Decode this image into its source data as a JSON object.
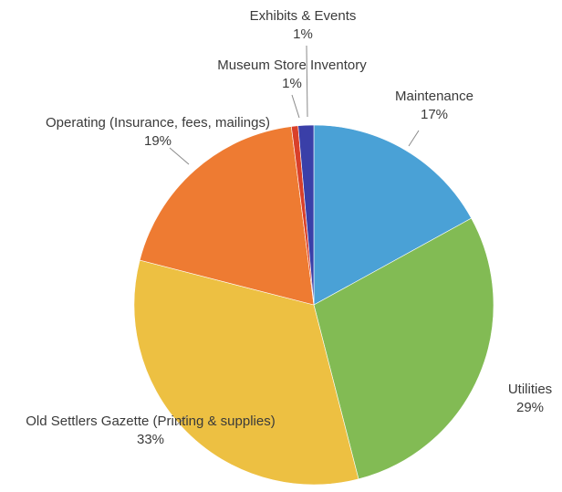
{
  "chart_data": {
    "type": "pie",
    "title": "",
    "slices": [
      {
        "label": "Maintenance",
        "value": 17,
        "value_label": "17%",
        "color": "#4aa1d6"
      },
      {
        "label": "Utilities",
        "value": 29,
        "value_label": "29%",
        "color": "#82bb54"
      },
      {
        "label": "Old Settlers Gazette (Printing & supplies)",
        "value": 33,
        "value_label": "33%",
        "color": "#edc042"
      },
      {
        "label": "Operating (Insurance, fees, mailings)",
        "value": 19,
        "value_label": "19%",
        "color": "#ee7b32"
      },
      {
        "label": "Museum Store Inventory",
        "value": 0.6,
        "value_label": "1%",
        "color": "#d9402a"
      },
      {
        "label": "Exhibits & Events",
        "value": 1.4,
        "value_label": "1%",
        "color": "#3a3fa8"
      }
    ],
    "start_angle": "12 o'clock",
    "direction": "clockwise",
    "legend": "none"
  }
}
